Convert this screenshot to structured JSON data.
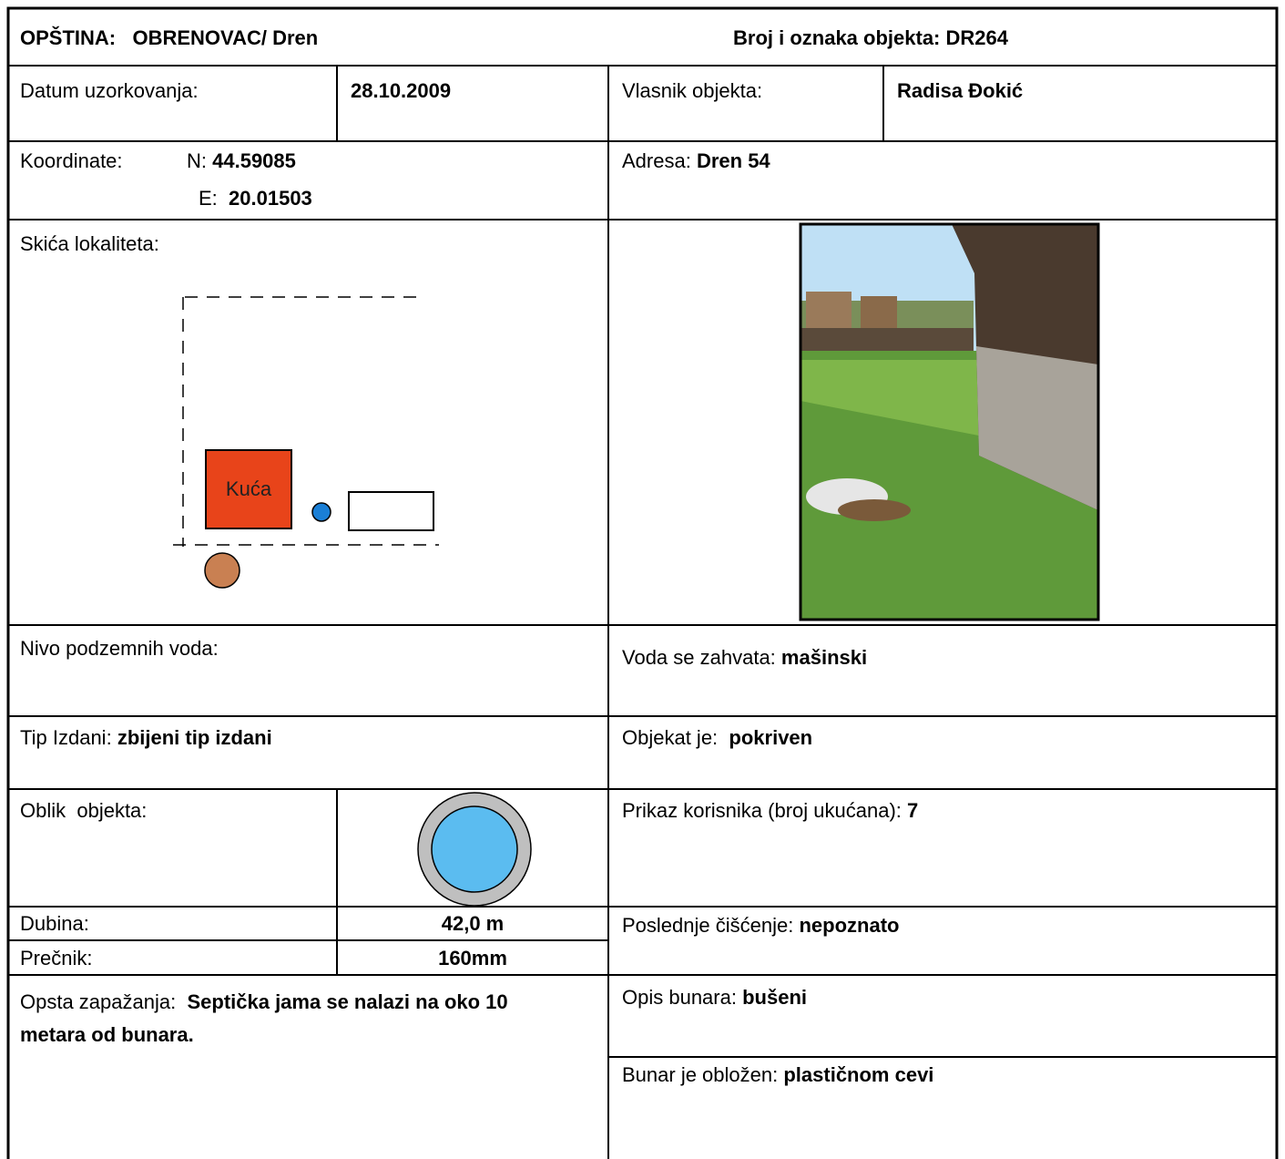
{
  "header": {
    "municipality_label": "OPŠTINA:",
    "municipality": "OBRENOVAC/ Dren",
    "object_label": "Broj i oznaka objekta:",
    "object_id": "DR264"
  },
  "date": {
    "label": "Datum uzorkovanja:",
    "value": "28.10.2009"
  },
  "owner": {
    "label": "Vlasnik objekta:",
    "value": "Radisa Đokić"
  },
  "coordinates": {
    "label": "Koordinate:",
    "n_label": "N:",
    "n": "44.59085",
    "e_label": "E:",
    "e": "20.01503"
  },
  "address": {
    "label": "Adresa:",
    "value": "Dren 54"
  },
  "sketch": {
    "label": "Skića lokaliteta:",
    "house": "Kuća"
  },
  "groundwater": {
    "label": "Nivo podzemnih voda:"
  },
  "intake": {
    "label": "Voda se zahvata:",
    "value": "mašinski"
  },
  "aquifer": {
    "label": "Tip Izdani:",
    "value": "zbijeni tip izdani"
  },
  "cover": {
    "label": "Objekat je:",
    "value": "pokriven"
  },
  "shape": {
    "label": "Oblik  objekta:"
  },
  "users": {
    "label": "Prikaz korisnika (broj ukućana):",
    "value": "7"
  },
  "depth": {
    "label": "Dubina:",
    "value": "42,0 m"
  },
  "diameter": {
    "label": "Prečnik:",
    "value": "160mm"
  },
  "cleaning": {
    "label": "Poslednje čišćenje:",
    "value": "nepoznato"
  },
  "remarks": {
    "label": "Opsta zapažanja:",
    "value": "Septička jama se nalazi na oko 10 metara od bunara."
  },
  "well_type": {
    "label": "Opis bunara:",
    "value": "bušeni"
  },
  "lining": {
    "label": "Bunar je obložen:",
    "value": "plastičnom cevi"
  }
}
